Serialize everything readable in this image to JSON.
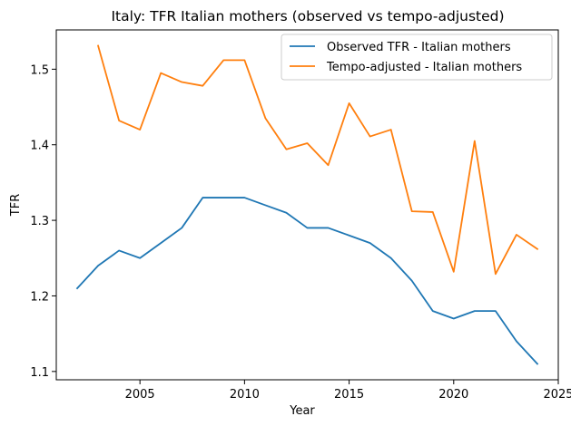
{
  "chart_data": {
    "type": "line",
    "title": "Italy: TFR Italian mothers (observed vs tempo-adjusted)",
    "xlabel": "Year",
    "ylabel": "TFR",
    "xlim": [
      2001.0,
      2025.0
    ],
    "ylim": [
      1.089,
      1.552
    ],
    "xticks": [
      2005,
      2010,
      2015,
      2020,
      2025
    ],
    "yticks": [
      1.1,
      1.2,
      1.3,
      1.4,
      1.5
    ],
    "grid": false,
    "legend_position": "upper-right",
    "series": [
      {
        "name": "Observed TFR - Italian mothers",
        "color": "#1f77b4",
        "x": [
          2002,
          2003,
          2004,
          2005,
          2006,
          2007,
          2008,
          2009,
          2010,
          2011,
          2012,
          2013,
          2014,
          2015,
          2016,
          2017,
          2018,
          2019,
          2020,
          2021,
          2022,
          2023,
          2024
        ],
        "y": [
          1.21,
          1.24,
          1.26,
          1.25,
          1.27,
          1.29,
          1.33,
          1.33,
          1.33,
          1.32,
          1.31,
          1.29,
          1.29,
          1.28,
          1.27,
          1.25,
          1.22,
          1.18,
          1.17,
          1.18,
          1.18,
          1.14,
          1.11
        ]
      },
      {
        "name": "Tempo-adjusted - Italian mothers",
        "color": "#ff7f0e",
        "x": [
          2003,
          2004,
          2005,
          2006,
          2007,
          2008,
          2009,
          2010,
          2011,
          2012,
          2013,
          2014,
          2015,
          2016,
          2017,
          2018,
          2019,
          2020,
          2021,
          2022,
          2023,
          2024
        ],
        "y": [
          1.531,
          1.432,
          1.42,
          1.495,
          1.483,
          1.478,
          1.512,
          1.512,
          1.435,
          1.394,
          1.402,
          1.373,
          1.455,
          1.411,
          1.42,
          1.312,
          1.311,
          1.232,
          1.405,
          1.229,
          1.281,
          1.262
        ]
      }
    ]
  }
}
